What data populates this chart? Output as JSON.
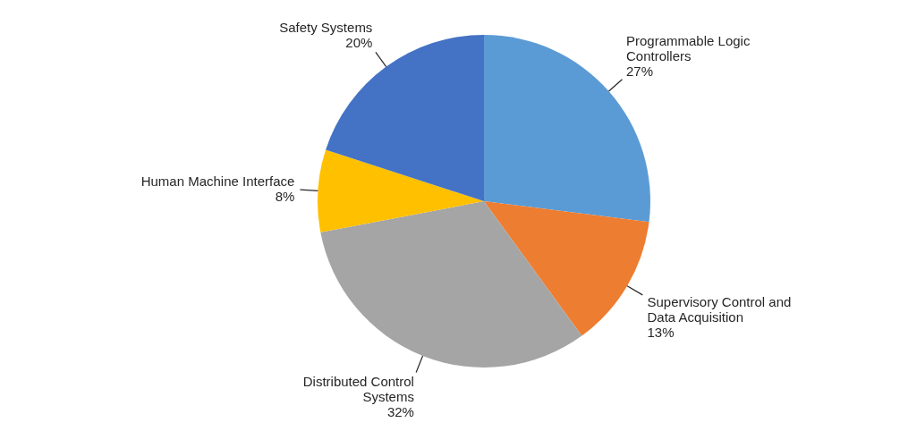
{
  "chart_data": {
    "type": "pie",
    "categories": [
      "Programmable Logic Controllers",
      "Supervisory Control and Data Acquisition",
      "Distributed Control Systems",
      "Human Machine Interface",
      "Safety Systems"
    ],
    "values": [
      27,
      13,
      32,
      8,
      20
    ],
    "value_labels": [
      "27%",
      "13%",
      "32%",
      "8%",
      "20%"
    ],
    "colors": [
      "#5b9bd5",
      "#ed7d31",
      "#a5a5a5",
      "#ffc000",
      "#4472c4"
    ]
  }
}
